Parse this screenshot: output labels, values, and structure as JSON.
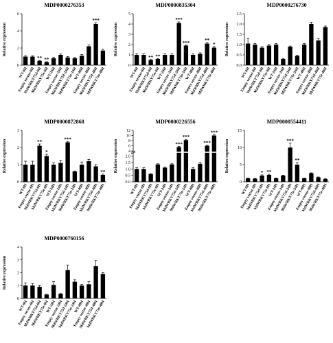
{
  "chart_data": [
    {
      "type": "bar",
      "title": "MDP0000276353",
      "y_label": "Relative expression",
      "categories": [
        "WT-0H",
        "Empty vector-0H",
        "MdWRKY75d-0H",
        "MdWRKY75e-0H",
        "WT-24H",
        "Empty vector-24H",
        "MdWRKY75d-24H",
        "MdWRKY75e-24H",
        "WT-48H",
        "Empty vector-48H",
        "MdWRKY75d-48H",
        "MdWRKY75e-48H"
      ],
      "values": [
        1.0,
        1.0,
        0.5,
        0.35,
        0.8,
        1.2,
        0.9,
        0.8,
        1.1,
        2.2,
        4.8,
        1.7
      ],
      "errors": [
        0.1,
        0.1,
        0.05,
        0.05,
        0.1,
        0.1,
        0.1,
        0.1,
        0.15,
        0.15,
        0.15,
        0.15
      ],
      "annotations": [
        null,
        null,
        "**",
        "**",
        null,
        null,
        null,
        null,
        null,
        null,
        "***",
        null
      ],
      "color": "#000000",
      "ylim": [
        0,
        6
      ],
      "yticks": [
        0,
        2,
        4,
        6
      ]
    },
    {
      "type": "bar",
      "title": "MDP0000835304",
      "y_label": "Relative expression",
      "categories": [
        "WT-0H",
        "Empty vector-0H",
        "MdWRKY75d-0H",
        "MdWRKY75e-0H",
        "WT-24H",
        "Empty vector-24H",
        "MdWRKY75d-24H",
        "MdWRKY75e-24H",
        "WT-48H",
        "Empty vector-48H",
        "MdWRKY75d-48H",
        "MdWRKY75e-48H"
      ],
      "values": [
        1.0,
        1.0,
        0.5,
        0.6,
        1.0,
        1.0,
        4.1,
        1.9,
        1.0,
        1.1,
        2.1,
        1.7
      ],
      "errors": [
        0.1,
        0.1,
        0.05,
        0.05,
        0.1,
        0.1,
        0.1,
        0.05,
        0.1,
        0.1,
        0.1,
        0.1
      ],
      "annotations": [
        null,
        null,
        "**",
        "**",
        null,
        null,
        "***",
        "***",
        null,
        null,
        "**",
        "*"
      ],
      "color": "#000000",
      "ylim": [
        0,
        5
      ],
      "yticks": [
        0,
        1,
        2,
        3,
        4,
        5
      ]
    },
    {
      "type": "bar",
      "title": "MDP0000276730",
      "y_label": "Relative expression",
      "categories": [
        "WT-0H",
        "Empty vector-0H",
        "MdWRKY75d-0H",
        "MdWRKY75e-0H",
        "WT-24H",
        "Empty vector-24H",
        "MdWRKY75d-24H",
        "MdWRKY75e-24H",
        "WT-48H",
        "Empty vector-48H",
        "MdWRKY75d-48H",
        "MdWRKY75e-48H"
      ],
      "values": [
        1.05,
        1.0,
        0.85,
        0.95,
        1.0,
        0.3,
        0.9,
        0.45,
        1.0,
        2.0,
        1.2,
        1.85
      ],
      "errors": [
        0.25,
        0.05,
        0.05,
        0.05,
        0.05,
        0.03,
        0.03,
        0.03,
        0.05,
        0.08,
        0.08,
        0.05
      ],
      "annotations": [
        null,
        null,
        null,
        null,
        null,
        null,
        null,
        null,
        null,
        null,
        null,
        null
      ],
      "color": "#000000",
      "ylim": [
        0,
        2.5
      ],
      "yticks": [
        {
          "value": 0,
          "label": "0.0"
        },
        0.5,
        {
          "value": 1,
          "label": "1.0"
        },
        1.5,
        {
          "value": 2,
          "label": "2.0"
        },
        2.5
      ]
    },
    {
      "type": "bar",
      "title": "MDP0000872868",
      "y_label": "Relative expression",
      "categories": [
        "WT-0H",
        "Empty vector-0H",
        "MdWRKY75d-0H",
        "MdWRKY75e-0H",
        "WT-24H",
        "Empty vector-24H",
        "MdWRKY75d-24H",
        "MdWRKY75e-24H",
        "WT-48H",
        "Empty vector-48H",
        "MdWRKY75d-48H",
        "MdWRKY75e-48H"
      ],
      "values": [
        1.0,
        1.0,
        2.1,
        1.5,
        1.0,
        1.1,
        2.3,
        0.6,
        1.0,
        1.2,
        0.9,
        0.4
      ],
      "errors": [
        0.2,
        0.2,
        0.1,
        0.1,
        0.1,
        0.15,
        0.05,
        0.03,
        0.15,
        0.1,
        0.1,
        0.05
      ],
      "annotations": [
        null,
        null,
        "**",
        "*",
        null,
        null,
        "***",
        null,
        null,
        null,
        null,
        "**"
      ],
      "color": "#000000",
      "ylim": [
        0,
        3
      ],
      "yticks": [
        0,
        1,
        2,
        3
      ]
    },
    {
      "type": "bar",
      "title": "MDP0000226556",
      "y_label": "Relative expression",
      "categories": [
        "WT-0H",
        "Empty vector-0H",
        "MdWRKY75d-0H",
        "MdWRKY75e-0H",
        "WT-24H",
        "Empty vector-24H",
        "MdWRKY75d-24H",
        "MdWRKY75e-24H",
        "WT-48H",
        "Empty vector-48H",
        "MdWRKY75d-48H",
        "MdWRKY75e-48H"
      ],
      "values": [
        1.0,
        1.0,
        0.6,
        1.35,
        1.1,
        1.35,
        5.5,
        8.2,
        1.0,
        1.4,
        6.0,
        10.0
      ],
      "errors": [
        0.1,
        0.1,
        0.05,
        0.05,
        0.05,
        0.05,
        0.2,
        0.3,
        0.1,
        0.1,
        0.3,
        0.3
      ],
      "annotations": [
        null,
        null,
        null,
        null,
        null,
        null,
        "***",
        "***",
        null,
        null,
        "***",
        "***"
      ],
      "color": "#000000",
      "ylim": [
        0,
        12
      ],
      "axis_break": [
        2.2,
        4
      ],
      "yticks": [
        {
          "value": 0,
          "label": "0.0"
        },
        0.5,
        {
          "value": 1,
          "label": "1.0"
        },
        1.5,
        {
          "value": 2,
          "label": "2.0"
        },
        4,
        6,
        8,
        10,
        12
      ]
    },
    {
      "type": "bar",
      "title": "MDP0000554411",
      "y_label": "Relative expression",
      "categories": [
        "WT-0H",
        "Empty vector-0H",
        "MdWRKY75d-0H",
        "MdWRKY75e-0H",
        "WT-24H",
        "Empty vector-24H",
        "MdWRKY75d-24H",
        "MdWRKY75e-24H",
        "WT-48H",
        "Empty vector-48H",
        "MdWRKY75d-48H",
        "MdWRKY75e-48H"
      ],
      "values": [
        1.0,
        0.9,
        1.8,
        2.0,
        1.0,
        1.8,
        10.0,
        5.0,
        1.0,
        2.5,
        1.3,
        0.8
      ],
      "errors": [
        0.1,
        0.1,
        0.2,
        0.2,
        0.1,
        0.1,
        1.3,
        0.6,
        0.1,
        0.1,
        0.1,
        0.1
      ],
      "annotations": [
        null,
        null,
        "*",
        "**",
        null,
        null,
        "***",
        "**",
        null,
        null,
        null,
        null
      ],
      "color": "#000000",
      "ylim": [
        0,
        15
      ],
      "yticks": [
        0,
        5,
        10,
        15
      ]
    },
    {
      "type": "bar",
      "title": "MDP0000760156",
      "y_label": "Relative expression",
      "categories": [
        "WT-0H",
        "Empty vector-0H",
        "MdWRKY75d-0H",
        "MdWRKY75e-0H",
        "WT-24H",
        "Empty vector-24H",
        "MdWRKY75d-24H",
        "MdWRKY75e-24H",
        "WT-48H",
        "Empty vector-48H",
        "MdWRKY75d-48H",
        "MdWRKY75e-48H"
      ],
      "values": [
        1.0,
        1.0,
        0.9,
        0.3,
        1.05,
        0.35,
        2.2,
        1.3,
        1.0,
        1.1,
        2.5,
        1.9
      ],
      "errors": [
        0.2,
        0.15,
        0.1,
        0.03,
        0.25,
        0.03,
        0.4,
        0.15,
        0.1,
        0.2,
        0.45,
        0.1
      ],
      "annotations": [
        null,
        null,
        null,
        null,
        null,
        null,
        null,
        null,
        null,
        null,
        null,
        null
      ],
      "color": "#000000",
      "ylim": [
        0,
        4
      ],
      "yticks": [
        0,
        1,
        2,
        3,
        4
      ]
    }
  ]
}
